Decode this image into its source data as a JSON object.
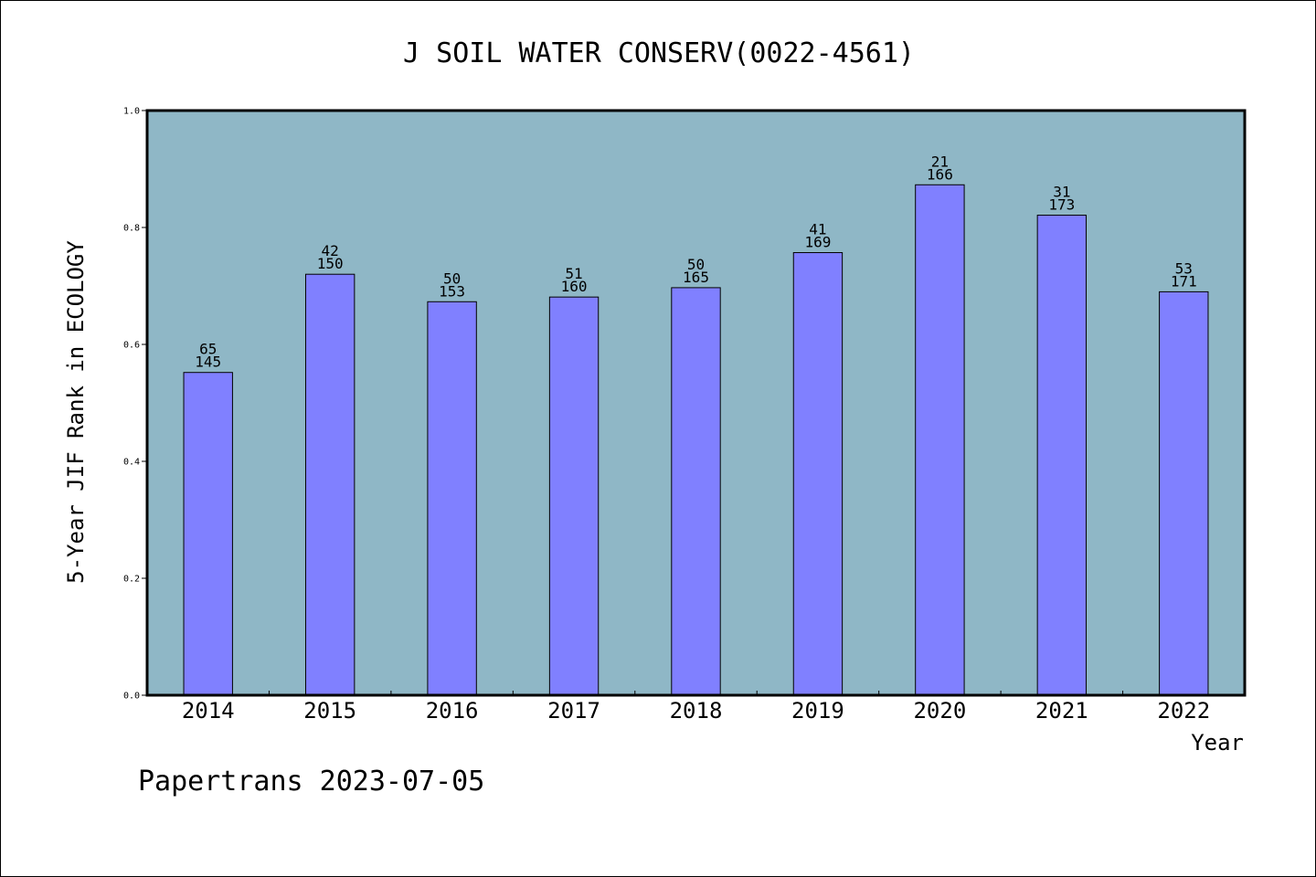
{
  "chart_data": {
    "type": "bar",
    "title": "J SOIL WATER CONSERV(0022-4561)",
    "xlabel": "Year",
    "ylabel": "5-Year JIF Rank in ECOLOGY",
    "categories": [
      "2014",
      "2015",
      "2016",
      "2017",
      "2018",
      "2019",
      "2020",
      "2021",
      "2022"
    ],
    "values": [
      0.552,
      0.72,
      0.673,
      0.681,
      0.697,
      0.757,
      0.873,
      0.821,
      0.69
    ],
    "rank": [
      "65",
      "42",
      "50",
      "51",
      "50",
      "41",
      "21",
      "31",
      "53"
    ],
    "total": [
      "145",
      "150",
      "153",
      "160",
      "165",
      "169",
      "166",
      "173",
      "171"
    ],
    "ylim": [
      0,
      1.0
    ],
    "yticks": [
      "0.0",
      "0.2",
      "0.4",
      "0.6",
      "0.8",
      "1.0"
    ],
    "grid": false,
    "colors": {
      "plot_bg": "#8fb7c6",
      "bar": "#8080ff",
      "bar_edge": "#000000"
    }
  },
  "footer": "Papertrans 2023-07-05"
}
